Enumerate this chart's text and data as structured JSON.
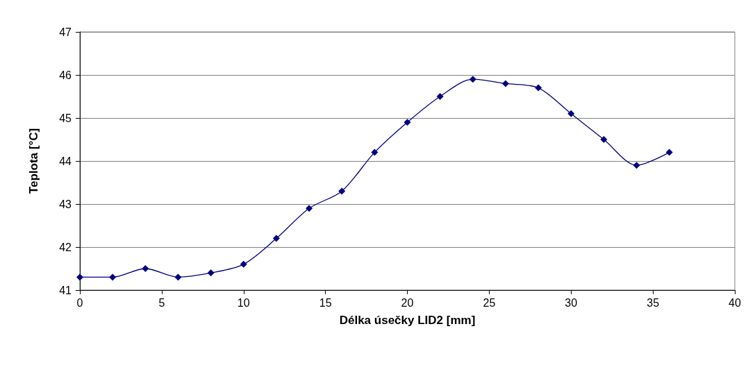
{
  "chart_data": {
    "type": "line",
    "xlabel": "Délka úsečky LID2 [mm]",
    "ylabel": "Teplota [°C]",
    "x": [
      0,
      2,
      4,
      6,
      8,
      10,
      12,
      14,
      16,
      18,
      20,
      22,
      24,
      26,
      28,
      30,
      32,
      34,
      36
    ],
    "series": [
      {
        "color": "#000080",
        "values": [
          41.3,
          41.3,
          41.5,
          41.3,
          41.4,
          41.6,
          42.2,
          42.9,
          43.3,
          44.2,
          44.9,
          45.5,
          45.9,
          45.8,
          45.7,
          45.1,
          44.5,
          43.9,
          44.2
        ]
      }
    ],
    "xlim": [
      0,
      40
    ],
    "xticks": [
      0,
      5,
      10,
      15,
      20,
      25,
      30,
      35,
      40
    ],
    "ylim": [
      41,
      47
    ],
    "yticks": [
      41,
      42,
      43,
      44,
      45,
      46,
      47
    ],
    "grid": "y",
    "marker": "diamond",
    "line_style": "solid"
  }
}
